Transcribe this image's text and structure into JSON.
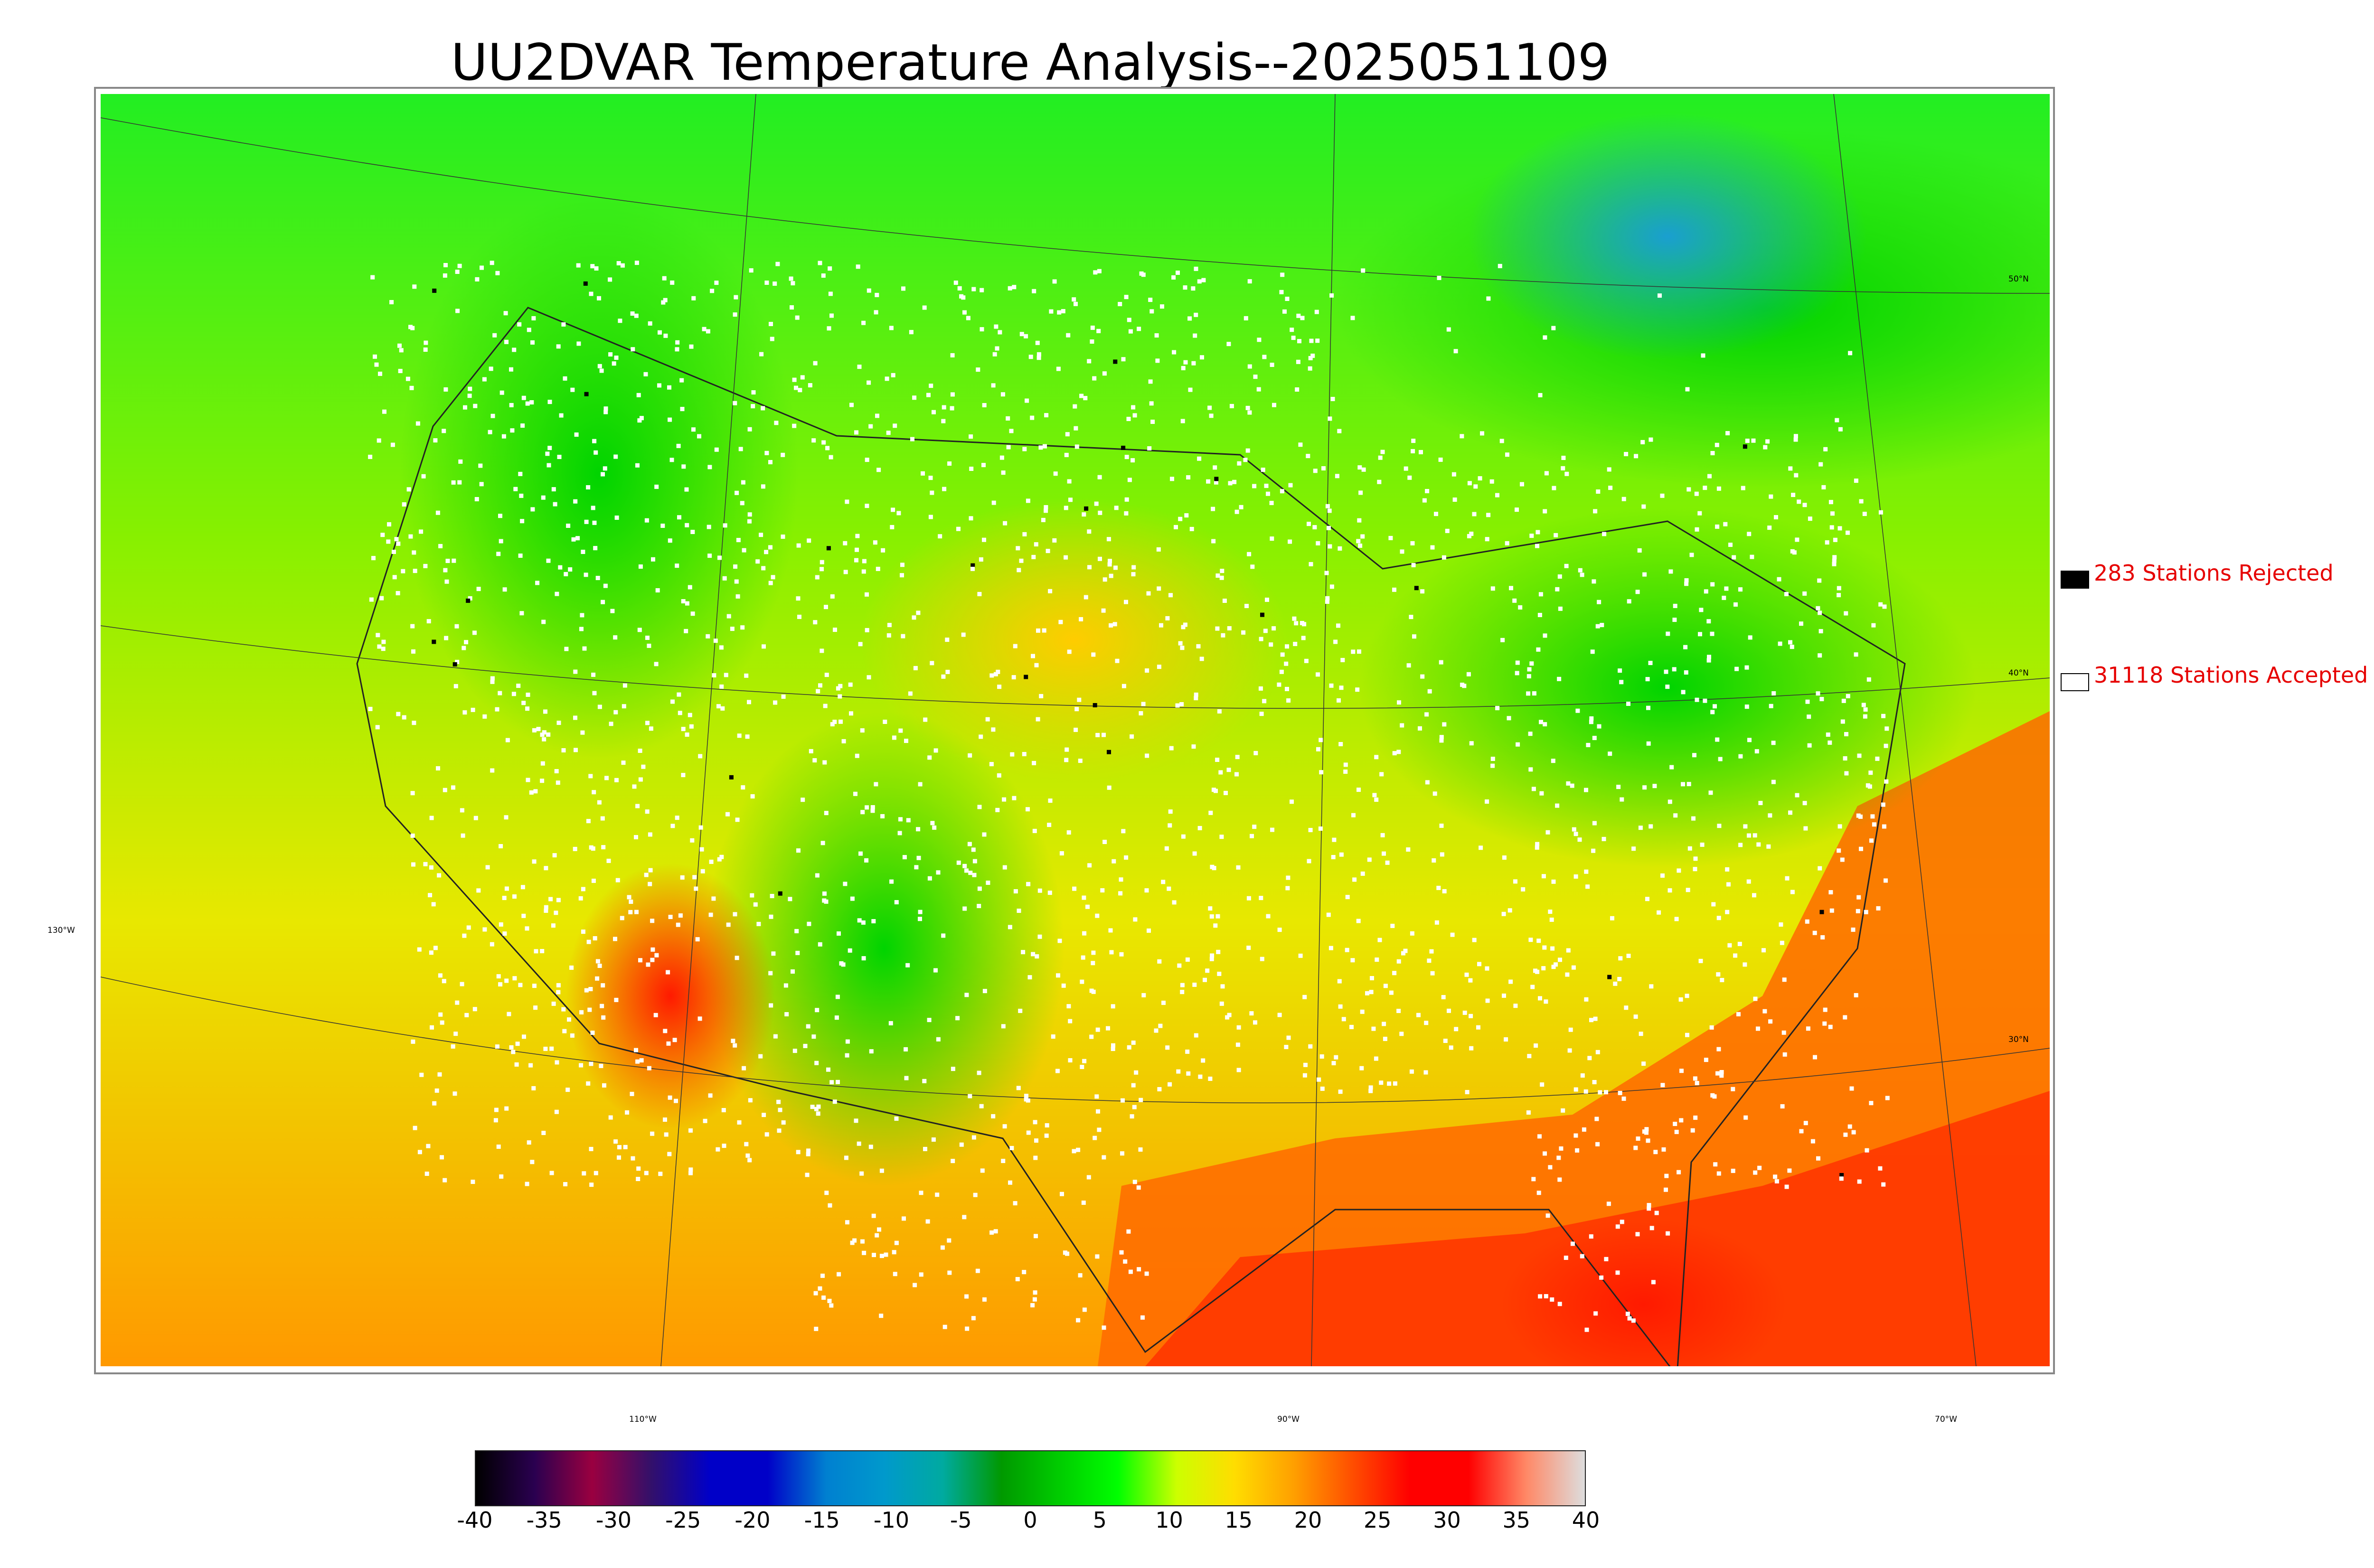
{
  "title": "UU2DVAR Temperature Analysis--2025051109",
  "legend": {
    "rejected": {
      "label": "283 Stations Rejected",
      "swatch": "#000000"
    },
    "accepted": {
      "label": "31118 Stations Accepted",
      "swatch": "#ffffff"
    }
  },
  "grid_labels": {
    "lat": [
      "50°N",
      "40°N",
      "30°N"
    ],
    "lon": [
      "130°W",
      "110°W",
      "90°W",
      "70°W"
    ]
  },
  "colorbar": {
    "ticks": [
      "-40",
      "-35",
      "-30",
      "-25",
      "-20",
      "-15",
      "-10",
      "-5",
      "0",
      "5",
      "10",
      "15",
      "20",
      "25",
      "30",
      "35",
      "40"
    ],
    "colors": [
      "#000000",
      "#2a0050",
      "#9a0040",
      "#33106a",
      "#0000c8",
      "#0000c8",
      "#0080d0",
      "#0099cc",
      "#00aaa0",
      "#009900",
      "#00cc00",
      "#00ff00",
      "#ccff00",
      "#ffdd00",
      "#ffa000",
      "#ff5000",
      "#ff0000",
      "#ff0000",
      "#ff8866",
      "#dddddd"
    ]
  },
  "colors": {
    "warm": "#ff2200",
    "cool": "#00dd00",
    "ocean_cold": "#22aacc",
    "rejected_text": "#e60000"
  }
}
